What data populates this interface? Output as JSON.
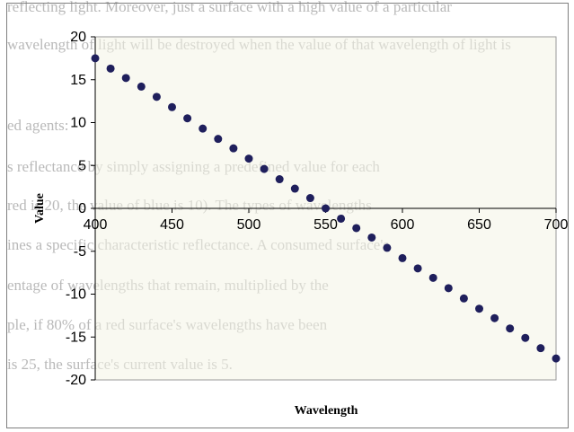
{
  "background_text": [
    "reflecting light. Moreover, just a surface with a high value of a particular",
    "wavelength of light will be destroyed when the value of that wavelength of light is",
    "",
    "ed agents:",
    "s reflectance by simply assigning a predefined value for each",
    "red is 20, the value of blue is 10). The types of wavelengths",
    "ines a specific characteristic reflectance. A consumed surface's",
    "entage of wavelengths that remain, multiplied by the",
    "ple, if 80% of a red surface's wavelengths have been",
    "is 25, the surface's current value is 5."
  ],
  "chart_data": {
    "type": "scatter",
    "title": "",
    "xlabel": "Wavelength",
    "ylabel": "Value",
    "xlim": [
      400,
      700
    ],
    "ylim": [
      -20,
      20
    ],
    "x_ticks": [
      400,
      450,
      500,
      550,
      600,
      650,
      700
    ],
    "y_ticks": [
      20,
      15,
      10,
      5,
      0,
      -5,
      -10,
      -15,
      -20
    ],
    "grid": false,
    "legend": "none",
    "marker_color": "#1f1f5c",
    "plot_background": "#f4f4e6",
    "series": [
      {
        "x": [
          400,
          410,
          420,
          430,
          440,
          450,
          460,
          470,
          480,
          490,
          500,
          510,
          520,
          530,
          540,
          550,
          560,
          570,
          580,
          590,
          600,
          610,
          620,
          630,
          640,
          650,
          660,
          670,
          680,
          690,
          700
        ],
        "y": [
          17.5,
          16.3,
          15.2,
          14.2,
          13.0,
          11.8,
          10.5,
          9.3,
          8.1,
          7.0,
          5.8,
          4.6,
          3.4,
          2.3,
          1.2,
          0.0,
          -1.2,
          -2.3,
          -3.4,
          -4.6,
          -5.8,
          -7.0,
          -8.1,
          -9.3,
          -10.5,
          -11.7,
          -12.8,
          -14.0,
          -15.1,
          -16.3,
          -17.5
        ]
      }
    ]
  }
}
